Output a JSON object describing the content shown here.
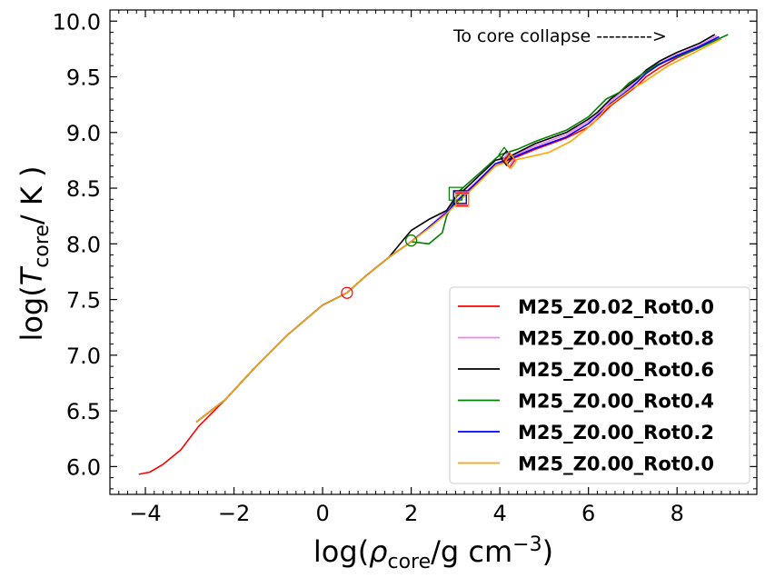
{
  "chart_data": {
    "type": "line",
    "title": "",
    "xlabel": "log(ρ_core/g cm^-3)",
    "ylabel": "log(T_core/ K )",
    "xlabel_parts": {
      "pre": "log(",
      "sym": "ρ",
      "sub": "core",
      "mid": "/g cm",
      "sup": "−3",
      "post": ")"
    },
    "ylabel_parts": {
      "pre": "log(",
      "sym": "T",
      "sub": "core",
      "post": "/ K )"
    },
    "xlim": [
      -4.8,
      9.8
    ],
    "ylim": [
      5.75,
      10.1
    ],
    "xticks": [
      -4,
      -2,
      0,
      2,
      4,
      6,
      8
    ],
    "xtick_labels": [
      "−4",
      "−2",
      "0",
      "2",
      "4",
      "6",
      "8"
    ],
    "yticks": [
      6.0,
      6.5,
      7.0,
      7.5,
      8.0,
      8.5,
      9.0,
      9.5,
      10.0
    ],
    "ytick_labels": [
      "6.0",
      "6.5",
      "7.0",
      "7.5",
      "8.0",
      "8.5",
      "9.0",
      "9.5",
      "10.0"
    ],
    "annotation": "To core collapse --------->",
    "legend_position": "lower-right",
    "series": [
      {
        "name": "M25_Z0.02_Rot0.0",
        "color": "#ff0000",
        "x": [
          -4.15,
          -3.9,
          -3.6,
          -3.2,
          -2.8,
          -2.2,
          -1.5,
          -0.8,
          0.0,
          0.55,
          1.0,
          1.5,
          2.0,
          2.4,
          2.8,
          3.1,
          3.5,
          3.9,
          4.2,
          4.8,
          5.5,
          6.0,
          6.2,
          6.4,
          6.5,
          6.7,
          6.9,
          7.1,
          7.3,
          7.6,
          8.0,
          8.5,
          8.9
        ],
        "y": [
          5.93,
          5.95,
          6.02,
          6.15,
          6.36,
          6.6,
          6.9,
          7.18,
          7.45,
          7.56,
          7.72,
          7.88,
          8.02,
          8.15,
          8.28,
          8.4,
          8.55,
          8.7,
          8.75,
          8.85,
          8.95,
          9.05,
          9.12,
          9.2,
          9.24,
          9.3,
          9.36,
          9.42,
          9.5,
          9.58,
          9.67,
          9.76,
          9.85
        ]
      },
      {
        "name": "M25_Z0.00_Rot0.8",
        "color": "#ee82ee",
        "x": [
          -2.85,
          -2.2,
          -1.5,
          -0.8,
          0.0,
          0.55,
          1.0,
          1.5,
          2.0,
          2.4,
          2.8,
          3.1,
          3.5,
          3.9,
          4.2,
          4.8,
          5.5,
          6.0,
          6.2,
          6.4,
          6.5,
          6.7,
          6.9,
          7.1,
          7.3,
          7.6,
          8.0,
          8.5,
          8.9
        ],
        "y": [
          6.4,
          6.6,
          6.9,
          7.18,
          7.45,
          7.56,
          7.72,
          7.88,
          8.02,
          8.15,
          8.3,
          8.42,
          8.57,
          8.72,
          8.77,
          8.88,
          8.98,
          9.1,
          9.16,
          9.24,
          9.28,
          9.34,
          9.4,
          9.46,
          9.54,
          9.62,
          9.7,
          9.78,
          9.87
        ]
      },
      {
        "name": "M25_Z0.00_Rot0.6",
        "color": "#000000",
        "x": [
          -2.85,
          -2.2,
          -1.5,
          -0.8,
          0.0,
          0.55,
          1.0,
          1.5,
          1.85,
          2.0,
          2.4,
          2.8,
          3.0,
          3.1,
          3.5,
          3.9,
          4.2,
          4.8,
          5.5,
          6.0,
          6.2,
          6.4,
          6.5,
          6.7,
          6.9,
          7.1,
          7.3,
          7.6,
          8.0,
          8.5,
          8.85
        ],
        "y": [
          6.4,
          6.6,
          6.9,
          7.18,
          7.45,
          7.56,
          7.72,
          7.88,
          8.05,
          8.12,
          8.22,
          8.3,
          8.42,
          8.45,
          8.6,
          8.75,
          8.78,
          8.9,
          9.0,
          9.12,
          9.18,
          9.26,
          9.3,
          9.36,
          9.42,
          9.48,
          9.56,
          9.64,
          9.72,
          9.8,
          9.88
        ]
      },
      {
        "name": "M25_Z0.00_Rot0.4",
        "color": "#008000",
        "x": [
          -2.85,
          -2.2,
          -1.5,
          -0.8,
          0.0,
          0.55,
          1.0,
          1.5,
          2.0,
          2.4,
          2.7,
          2.8,
          3.1,
          3.5,
          4.0,
          4.4,
          4.8,
          5.5,
          6.0,
          6.2,
          6.4,
          6.7,
          6.9,
          7.2,
          7.5,
          8.0,
          8.5,
          9.15
        ],
        "y": [
          6.4,
          6.6,
          6.9,
          7.18,
          7.45,
          7.56,
          7.72,
          7.88,
          8.02,
          8.0,
          8.1,
          8.25,
          8.48,
          8.62,
          8.8,
          8.85,
          8.92,
          9.02,
          9.14,
          9.22,
          9.3,
          9.36,
          9.44,
          9.52,
          9.6,
          9.68,
          9.76,
          9.88
        ]
      },
      {
        "name": "M25_Z0.00_Rot0.2",
        "color": "#0000ff",
        "x": [
          -2.85,
          -2.2,
          -1.5,
          -0.8,
          0.0,
          0.55,
          1.0,
          1.5,
          2.0,
          2.4,
          2.8,
          3.1,
          3.5,
          3.9,
          4.2,
          4.8,
          5.5,
          6.0,
          6.2,
          6.4,
          6.5,
          6.7,
          6.9,
          7.1,
          7.3,
          7.6,
          8.0,
          8.5,
          8.95
        ],
        "y": [
          6.4,
          6.6,
          6.9,
          7.18,
          7.45,
          7.56,
          7.72,
          7.88,
          8.02,
          8.15,
          8.28,
          8.41,
          8.56,
          8.72,
          8.76,
          8.86,
          8.96,
          9.08,
          9.15,
          9.22,
          9.26,
          9.32,
          9.38,
          9.45,
          9.53,
          9.61,
          9.69,
          9.77,
          9.86
        ]
      },
      {
        "name": "M25_Z0.00_Rot0.0",
        "color": "#ffa500",
        "x": [
          -2.85,
          -2.2,
          -1.5,
          -0.8,
          0.0,
          0.55,
          1.0,
          1.5,
          2.0,
          2.4,
          2.8,
          3.1,
          3.5,
          3.9,
          4.2,
          5.1,
          5.6,
          6.1,
          6.4,
          6.6,
          6.8,
          7.0,
          7.2,
          7.5,
          7.8,
          8.2,
          8.6,
          9.0
        ],
        "y": [
          6.4,
          6.6,
          6.9,
          7.18,
          7.45,
          7.56,
          7.72,
          7.88,
          8.02,
          8.14,
          8.27,
          8.39,
          8.54,
          8.7,
          8.74,
          8.82,
          8.92,
          9.08,
          9.22,
          9.28,
          9.34,
          9.4,
          9.44,
          9.52,
          9.6,
          9.68,
          9.76,
          9.84
        ]
      }
    ],
    "markers": [
      {
        "series": "M25_Z0.02_Rot0.0",
        "shape": "circle",
        "x": 0.55,
        "y": 7.56,
        "color": "#ff0000"
      },
      {
        "series": "M25_Z0.02_Rot0.0",
        "shape": "circle",
        "x": 2.0,
        "y": 8.03,
        "color": "#ff0000"
      },
      {
        "series": "M25_Z0.00_Rot0.0",
        "shape": "circle",
        "x": 2.0,
        "y": 8.03,
        "color": "#ffa500"
      },
      {
        "series": "M25_Z0.00_Rot0.4",
        "shape": "circle",
        "x": 2.0,
        "y": 8.03,
        "color": "#008000"
      },
      {
        "series": "M25_Z0.00_Rot0.4",
        "shape": "square",
        "x": 3.0,
        "y": 8.45,
        "color": "#008000"
      },
      {
        "series": "M25_Z0.00_Rot0.6",
        "shape": "square",
        "x": 3.1,
        "y": 8.42,
        "color": "#000000"
      },
      {
        "series": "M25_Z0.00_Rot0.2",
        "shape": "square",
        "x": 3.1,
        "y": 8.41,
        "color": "#0000ff"
      },
      {
        "series": "M25_Z0.00_Rot0.8",
        "shape": "square",
        "x": 3.15,
        "y": 8.41,
        "color": "#ee82ee"
      },
      {
        "series": "M25_Z0.02_Rot0.0",
        "shape": "square",
        "x": 3.15,
        "y": 8.4,
        "color": "#ff0000"
      },
      {
        "series": "M25_Z0.00_Rot0.0",
        "shape": "square",
        "x": 3.15,
        "y": 8.39,
        "color": "#ffa500"
      },
      {
        "series": "M25_Z0.00_Rot0.4",
        "shape": "diamond",
        "x": 4.1,
        "y": 8.8,
        "color": "#008000"
      },
      {
        "series": "M25_Z0.00_Rot0.6",
        "shape": "diamond",
        "x": 4.15,
        "y": 8.77,
        "color": "#000000"
      },
      {
        "series": "M25_Z0.00_Rot0.2",
        "shape": "diamond",
        "x": 4.2,
        "y": 8.76,
        "color": "#0000ff"
      },
      {
        "series": "M25_Z0.00_Rot0.8",
        "shape": "diamond",
        "x": 4.2,
        "y": 8.76,
        "color": "#ee82ee"
      },
      {
        "series": "M25_Z0.02_Rot0.0",
        "shape": "diamond",
        "x": 4.22,
        "y": 8.75,
        "color": "#ff0000"
      },
      {
        "series": "M25_Z0.00_Rot0.0",
        "shape": "diamond",
        "x": 4.25,
        "y": 8.74,
        "color": "#ffa500"
      }
    ]
  }
}
